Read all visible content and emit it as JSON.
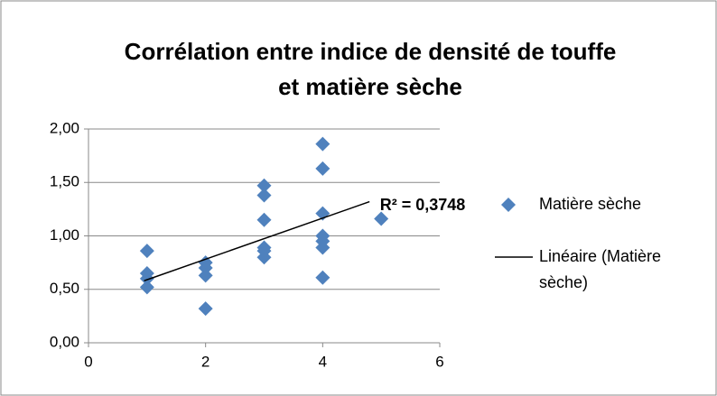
{
  "chart_data": {
    "type": "scatter",
    "title": "Corrélation entre indice de densité de touffe et matière sèche",
    "series": [
      {
        "name": "Matière sèche",
        "color": "#4f81bd",
        "x": [
          1,
          1,
          1,
          1,
          2,
          2,
          2,
          2,
          3,
          3,
          3,
          3,
          3,
          3,
          4,
          4,
          4,
          4,
          4,
          4,
          4,
          5
        ],
        "values": [
          0.86,
          0.65,
          0.6,
          0.52,
          0.75,
          0.7,
          0.63,
          0.32,
          1.47,
          1.38,
          1.15,
          0.89,
          0.86,
          0.8,
          1.86,
          1.63,
          1.21,
          1.0,
          0.95,
          0.89,
          0.61,
          1.16
        ]
      }
    ],
    "trendline": {
      "name": "Linéaire (Matière sèche)",
      "color": "#000000",
      "x": [
        0.95,
        4.8
      ],
      "values": [
        0.58,
        1.32
      ]
    },
    "annotation": "R² = 0,3748",
    "xlim": [
      0,
      6
    ],
    "xticks": [
      0,
      2,
      4,
      6
    ],
    "ylim": [
      0,
      2
    ],
    "yticks": [
      {
        "value": 0,
        "label": "0,00"
      },
      {
        "value": 0.5,
        "label": "0,50"
      },
      {
        "value": 1,
        "label": "1,00"
      },
      {
        "value": 1.5,
        "label": "1,50"
      },
      {
        "value": 2,
        "label": "2,00"
      }
    ],
    "grid": true,
    "legend": "right"
  }
}
